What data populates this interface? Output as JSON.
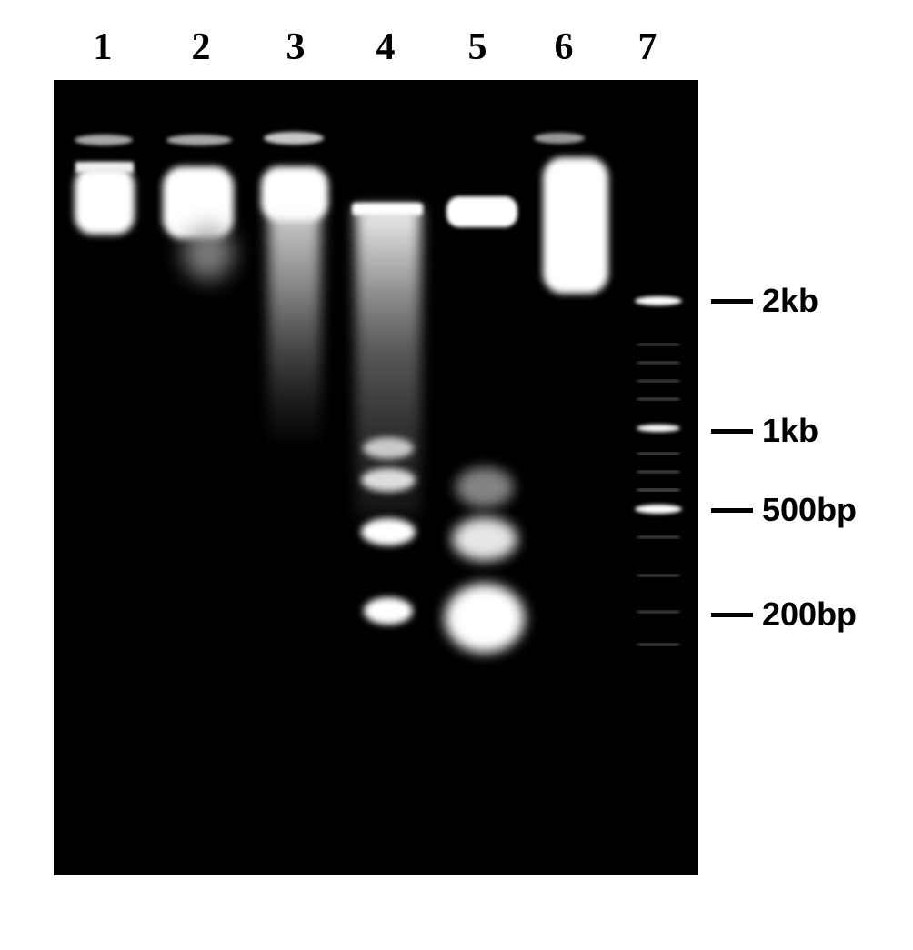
{
  "lanes": [
    "1",
    "2",
    "3",
    "4",
    "5",
    "6",
    "7"
  ],
  "size_markers": [
    "2kb",
    "1kb",
    "500bp",
    "200bp"
  ],
  "colors": {
    "gel": "#000000",
    "band": "#ffffff",
    "background": "#ffffff"
  }
}
